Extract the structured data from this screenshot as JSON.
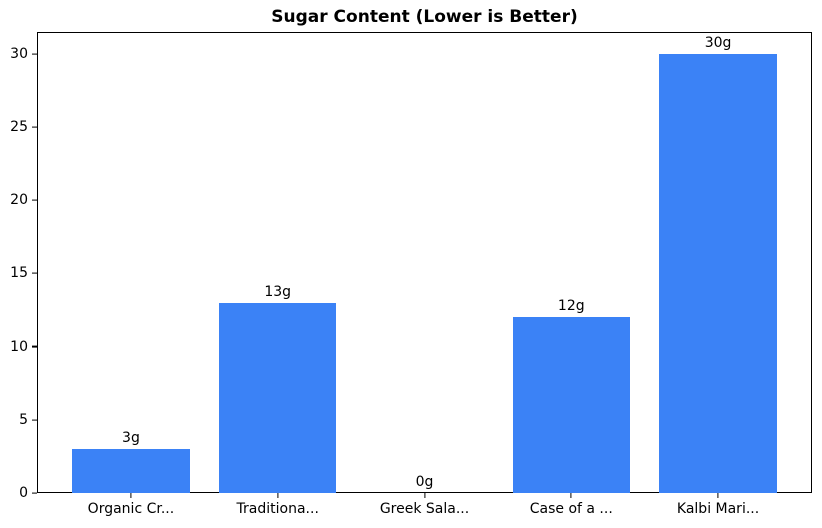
{
  "chart_data": {
    "type": "bar",
    "title": "Sugar Content (Lower is Better)",
    "categories": [
      "Organic Cr...",
      "Traditiona...",
      "Greek Sala...",
      "Case of a ...",
      "Kalbi Mari..."
    ],
    "values": [
      3,
      13,
      0,
      12,
      30
    ],
    "bar_labels": [
      "3g",
      "13g",
      "0g",
      "12g",
      "30g"
    ],
    "xlabel": "",
    "ylabel": "",
    "yticks": [
      0,
      5,
      10,
      15,
      20,
      25,
      30
    ],
    "ylim": [
      0,
      31.5
    ],
    "grid": false,
    "legend_position": "none",
    "bar_color": "#3b82f6",
    "axis_color": "#000000",
    "text_color": "#000000",
    "background_color": "#ffffff",
    "bar_width_fraction": 0.8
  }
}
